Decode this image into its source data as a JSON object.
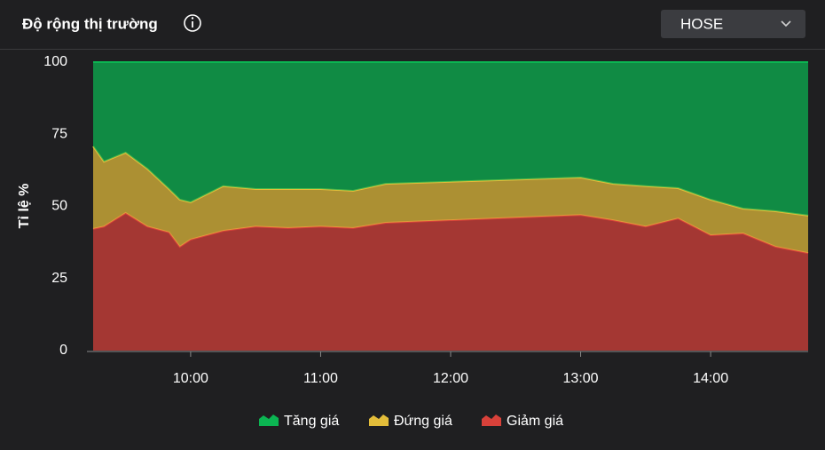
{
  "header": {
    "title": "Độ rộng thị trường",
    "dropdown": "HOSE"
  },
  "chart_data": {
    "type": "stacked-area",
    "ylabel": "Tỉ lệ %",
    "x": [
      "09:15",
      "09:20",
      "09:30",
      "09:40",
      "09:50",
      "09:55",
      "10:00",
      "10:15",
      "10:30",
      "10:45",
      "11:00",
      "11:15",
      "11:30",
      "13:00",
      "13:15",
      "13:30",
      "13:45",
      "14:00",
      "14:15",
      "14:30",
      "14:45"
    ],
    "xlim": [
      "09:15",
      "14:45"
    ],
    "xticks": [
      "10:00",
      "11:00",
      "12:00",
      "13:00",
      "14:00"
    ],
    "ylim": [
      0,
      100
    ],
    "yticks": [
      0,
      25,
      50,
      75,
      100
    ],
    "series": [
      {
        "name": "Tăng giá",
        "color": "#0bb552",
        "values": [
          29.2,
          34.5,
          31.4,
          37,
          44,
          47.7,
          48.6,
          43,
          44,
          44,
          44,
          44.6,
          42.2,
          40,
          42.2,
          43,
          43.7,
          47.7,
          50.8,
          51.7,
          53.2
        ]
      },
      {
        "name": "Đứng giá",
        "color": "#e3bd3a",
        "values": [
          28.6,
          22.5,
          20.9,
          20,
          15,
          16.3,
          12.9,
          15.5,
          13,
          13.5,
          13,
          12.9,
          13.5,
          13,
          12.6,
          14,
          10.5,
          12.3,
          8.6,
          12.3,
          13
        ]
      },
      {
        "name": "Giảm giá",
        "color": "#d8413a",
        "values": [
          42.2,
          43,
          47.7,
          43,
          41,
          36,
          38.5,
          41.5,
          43,
          42.5,
          43,
          42.5,
          44.3,
          47,
          45.2,
          43,
          45.8,
          40,
          40.6,
          36,
          33.8
        ]
      }
    ]
  }
}
